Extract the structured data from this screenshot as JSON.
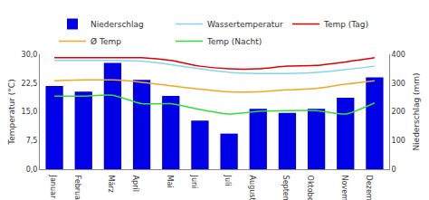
{
  "chart_data": {
    "type": "bar",
    "y_label": "Temperatur (°C)",
    "y2_label": "Niederschlag (mm)",
    "categories": [
      "Januar",
      "Februar",
      "März",
      "April",
      "Mai",
      "Juni",
      "Juli",
      "August",
      "September",
      "Oktober",
      "November",
      "Dezember"
    ],
    "series": [
      {
        "name": "Niederschlag",
        "type": "bar",
        "axis": "y2",
        "color": "#0000e6",
        "values": [
          290,
          270,
          370,
          311,
          255,
          169,
          124,
          210,
          196,
          210,
          249,
          320
        ]
      },
      {
        "name": "Wassertemperatur",
        "type": "line",
        "color": "#87d3f0",
        "values": [
          28.4,
          28.4,
          28.4,
          28.2,
          27.3,
          26.2,
          25.3,
          25.0,
          25.0,
          25.3,
          26.0,
          26.9
        ]
      },
      {
        "name": "Temp (Tag)",
        "type": "line",
        "color": "#e00000",
        "values": [
          29.1,
          29.1,
          29.1,
          29.1,
          28.4,
          26.9,
          26.2,
          26.2,
          26.9,
          27.1,
          28.0,
          29.1
        ]
      },
      {
        "name": "Ø Temp",
        "type": "line",
        "color": "#f5a623",
        "values": [
          23.1,
          23.3,
          23.3,
          22.7,
          21.8,
          20.9,
          20.2,
          20.2,
          20.7,
          21.1,
          22.2,
          23.1
        ]
      },
      {
        "name": "Temp (Nacht)",
        "type": "line",
        "color": "#33dd33",
        "values": [
          19.1,
          19.1,
          19.3,
          17.1,
          17.1,
          15.6,
          14.4,
          15.1,
          15.3,
          15.3,
          14.4,
          17.3
        ]
      }
    ],
    "ylim": [
      0,
      30
    ],
    "yticks": [
      {
        "value": 0,
        "label": "0,0"
      },
      {
        "value": 7.5,
        "label": "7,5"
      },
      {
        "value": 15,
        "label": "15,0"
      },
      {
        "value": 22.5,
        "label": "22,5"
      },
      {
        "value": 30,
        "label": "30,0"
      }
    ],
    "y2lim": [
      0,
      400
    ],
    "y2ticks": [
      0,
      100,
      200,
      300,
      400
    ],
    "grid": false,
    "legend": "top"
  }
}
